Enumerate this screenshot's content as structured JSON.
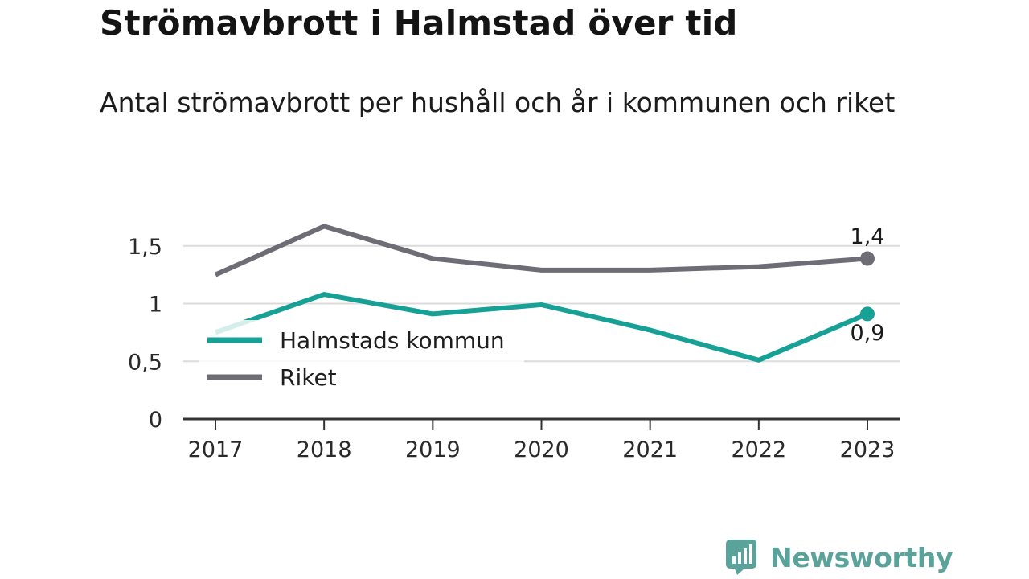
{
  "title": "Strömavbrott i Halmstad över tid",
  "subtitle": "Antal strömavbrott per hushåll och år i kommunen och riket",
  "logo": {
    "text": "Newsworthy",
    "icon": "newsworthy-logo-icon",
    "color": "#5aa39a"
  },
  "colors": {
    "halmstad": "#17a096",
    "riket": "#6e6d75",
    "grid": "#dcdcdc",
    "axis": "#333333"
  },
  "chart_data": {
    "type": "line",
    "x": [
      "2017",
      "2018",
      "2019",
      "2020",
      "2021",
      "2022",
      "2023"
    ],
    "ylim": [
      0,
      1.75
    ],
    "yticks": [
      0,
      0.5,
      1,
      1.5
    ],
    "ytick_labels": [
      "0",
      "0,5",
      "1",
      "1,5"
    ],
    "grid": true,
    "legend_position": "bottom-left",
    "series": [
      {
        "name": "Halmstads kommun",
        "color": "#17a096",
        "values": [
          0.75,
          1.08,
          0.91,
          0.99,
          0.77,
          0.51,
          0.91
        ],
        "end_label": "0,9"
      },
      {
        "name": "Riket",
        "color": "#6e6d75",
        "values": [
          1.25,
          1.67,
          1.39,
          1.29,
          1.29,
          1.32,
          1.39
        ],
        "end_label": "1,4"
      }
    ]
  }
}
